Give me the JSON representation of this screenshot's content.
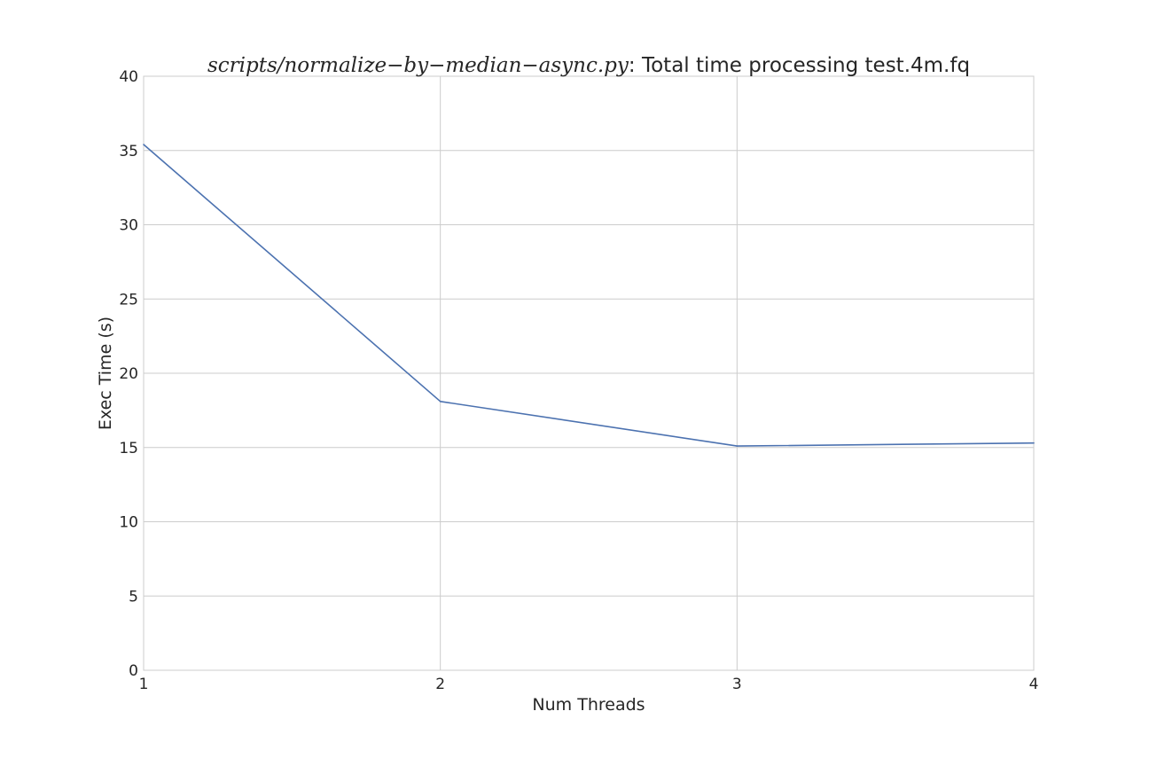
{
  "chart_data": {
    "type": "line",
    "title": {
      "script": "scripts/normalize−by−median−async.py",
      "rest": ": Total time processing test.4m.fq"
    },
    "xlabel": "Num Threads",
    "ylabel": "Exec Time (s)",
    "xlim": [
      1,
      4
    ],
    "ylim": [
      0,
      40
    ],
    "xticks": [
      1,
      2,
      3,
      4
    ],
    "xtick_labels": [
      "1",
      "2",
      "3",
      "4"
    ],
    "yticks": [
      0,
      5,
      10,
      15,
      20,
      25,
      30,
      35,
      40
    ],
    "ytick_labels": [
      "0",
      "5",
      "10",
      "15",
      "20",
      "25",
      "30",
      "35",
      "40"
    ],
    "grid": true,
    "series": [
      {
        "x": [
          1,
          2,
          3,
          4
        ],
        "y": [
          35.4,
          18.1,
          15.1,
          15.3
        ],
        "color": "#4c72b0"
      }
    ]
  },
  "colors": {
    "grid": "#cccccc",
    "text": "#262626",
    "background": "#ffffff"
  }
}
